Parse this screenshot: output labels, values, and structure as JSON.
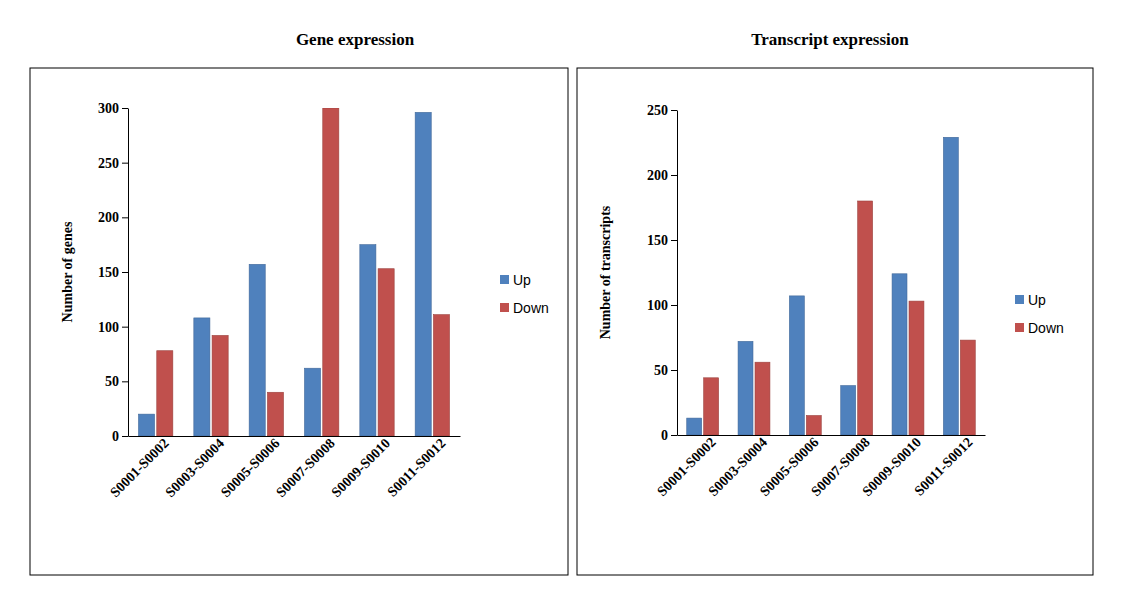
{
  "chart_data": [
    {
      "type": "bar",
      "title": "Gene expression",
      "y_label": "Number of genes",
      "categories": [
        "S0001-S0002",
        "S0003-S0004",
        "S0005-S0006",
        "S0007-S0008",
        "S0009-S0010",
        "S0011-S0012"
      ],
      "series": [
        {
          "name": "Up",
          "color": "#4f81bd",
          "values": [
            20,
            108,
            157,
            62,
            175,
            296
          ]
        },
        {
          "name": "Down",
          "color": "#c0504d",
          "values": [
            78,
            92,
            40,
            300,
            153,
            111
          ]
        }
      ],
      "ylim": [
        0,
        300
      ],
      "yticks": [
        0,
        50,
        100,
        150,
        200,
        250,
        300
      ],
      "grid": false,
      "legend": "right"
    },
    {
      "type": "bar",
      "title": "Transcript expression",
      "y_label": "Number of transcripts",
      "categories": [
        "S0001-S0002",
        "S0003-S0004",
        "S0005-S0006",
        "S0007-S0008",
        "S0009-S0010",
        "S0011-S0012"
      ],
      "series": [
        {
          "name": "Up",
          "color": "#4f81bd",
          "values": [
            13,
            72,
            107,
            38,
            124,
            229
          ]
        },
        {
          "name": "Down",
          "color": "#c0504d",
          "values": [
            44,
            56,
            15,
            180,
            103,
            73
          ]
        }
      ],
      "ylim": [
        0,
        250
      ],
      "yticks": [
        0,
        50,
        100,
        150,
        200,
        250
      ],
      "grid": false,
      "legend": "right"
    }
  ]
}
